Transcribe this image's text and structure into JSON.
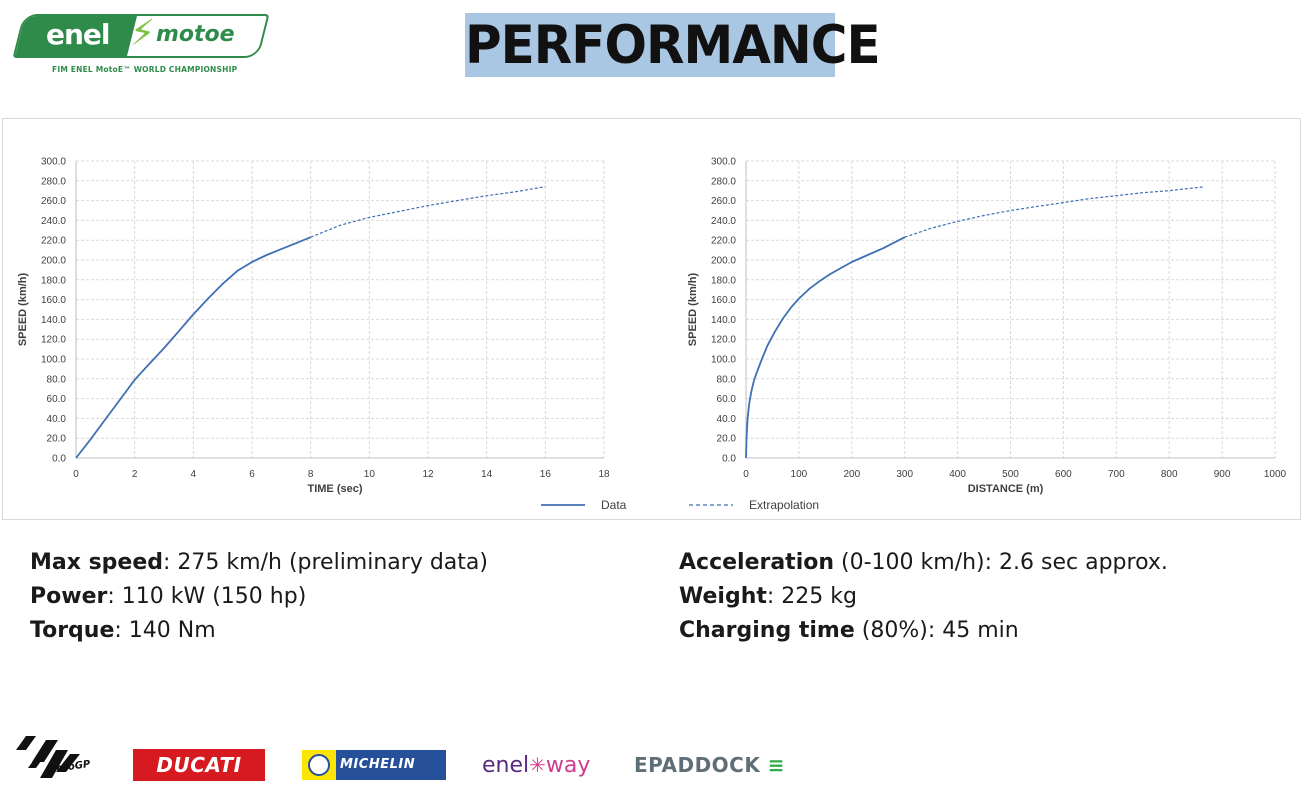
{
  "header": {
    "logo": {
      "enel": "enel",
      "motoe": "motoe",
      "subtitle": "FIM ENEL MotoE™ WORLD CHAMPIONSHIP"
    },
    "title": "PERFORMANCE",
    "title_bg": "#a9c7e2"
  },
  "chart_data": [
    {
      "type": "line",
      "xlabel": "TIME (sec)",
      "ylabel": "SPEED (km/h)",
      "xlim": [
        0,
        18
      ],
      "ylim": [
        0,
        300
      ],
      "x_ticks": [
        0,
        2,
        4,
        6,
        8,
        10,
        12,
        14,
        16,
        18
      ],
      "y_ticks": [
        0,
        20,
        40,
        60,
        80,
        100,
        120,
        140,
        160,
        180,
        200,
        220,
        240,
        260,
        280,
        300
      ],
      "y_tick_labels": [
        "0.0",
        "20.0",
        "40.0",
        "60.0",
        "80.0",
        "100.0",
        "120.0",
        "140.0",
        "160.0",
        "180.0",
        "200.0",
        "220.0",
        "240.0",
        "260.0",
        "280.0",
        "300.0"
      ],
      "grid": true,
      "series": [
        {
          "name": "Data",
          "style": "solid",
          "color": "#3f6fb5",
          "x": [
            0,
            0.5,
            1,
            1.5,
            2,
            2.5,
            3,
            3.5,
            4,
            4.5,
            5,
            5.5,
            6,
            6.5,
            7,
            7.5,
            8
          ],
          "y": [
            0,
            19,
            39,
            59,
            79,
            95,
            111,
            128,
            145,
            161,
            176,
            189,
            198,
            205,
            211,
            217,
            223
          ]
        },
        {
          "name": "Extrapolation",
          "style": "dashed",
          "color": "#3f6fb5",
          "x": [
            8,
            9,
            10,
            11,
            12,
            13,
            14,
            15,
            16
          ],
          "y": [
            223,
            235,
            243,
            249,
            255,
            260,
            265,
            269,
            274
          ]
        }
      ]
    },
    {
      "type": "line",
      "xlabel": "DISTANCE (m)",
      "ylabel": "SPEED (km/h)",
      "xlim": [
        0,
        1000
      ],
      "ylim": [
        0,
        300
      ],
      "x_ticks": [
        0,
        100,
        200,
        300,
        400,
        500,
        600,
        700,
        800,
        900,
        1000
      ],
      "y_ticks": [
        0,
        20,
        40,
        60,
        80,
        100,
        120,
        140,
        160,
        180,
        200,
        220,
        240,
        260,
        280,
        300
      ],
      "y_tick_labels": [
        "0.0",
        "20.0",
        "40.0",
        "60.0",
        "80.0",
        "100.0",
        "120.0",
        "140.0",
        "160.0",
        "180.0",
        "200.0",
        "220.0",
        "240.0",
        "260.0",
        "280.0",
        "300.0"
      ],
      "grid": true,
      "series": [
        {
          "name": "Data",
          "style": "solid",
          "color": "#3f6fb5",
          "x": [
            0,
            1,
            3,
            6,
            10,
            15,
            20,
            30,
            40,
            55,
            70,
            85,
            100,
            120,
            140,
            160,
            180,
            200,
            230,
            260,
            300
          ],
          "y": [
            0,
            20,
            40,
            55,
            67,
            78,
            86,
            100,
            113,
            128,
            141,
            152,
            161,
            171,
            179,
            186,
            192,
            198,
            205,
            212,
            223
          ]
        },
        {
          "name": "Extrapolation",
          "style": "dashed",
          "color": "#3f6fb5",
          "x": [
            300,
            350,
            400,
            450,
            500,
            550,
            600,
            650,
            700,
            750,
            800,
            867
          ],
          "y": [
            223,
            232,
            239,
            245,
            250,
            254,
            258,
            262,
            265,
            268,
            270,
            274
          ]
        }
      ]
    }
  ],
  "legend": {
    "placement": "bottom-center",
    "entries": [
      {
        "name": "Data",
        "style": "solid"
      },
      {
        "name": "Extrapolation",
        "style": "dashed"
      }
    ]
  },
  "specs": {
    "left": [
      {
        "label": "Max speed",
        "value": ": 275 km/h (preliminary data)"
      },
      {
        "label": "Power",
        "value": ": 110 kW (150 hp)"
      },
      {
        "label": "Torque",
        "value": ": 140 Nm"
      }
    ],
    "right": [
      {
        "label": "Acceleration",
        "value": " (0-100 km/h): 2.6 sec approx."
      },
      {
        "label": "Weight",
        "value": ": 225 kg"
      },
      {
        "label": "Charging time",
        "value": " (80%): 45 min"
      }
    ]
  },
  "sponsors": {
    "motogp": "motoGP",
    "ducati": "DUCATI",
    "michelin": "MICHELIN",
    "enelway_a": "enel",
    "enelway_b": "way",
    "epaddock": "EPADDOCK"
  }
}
